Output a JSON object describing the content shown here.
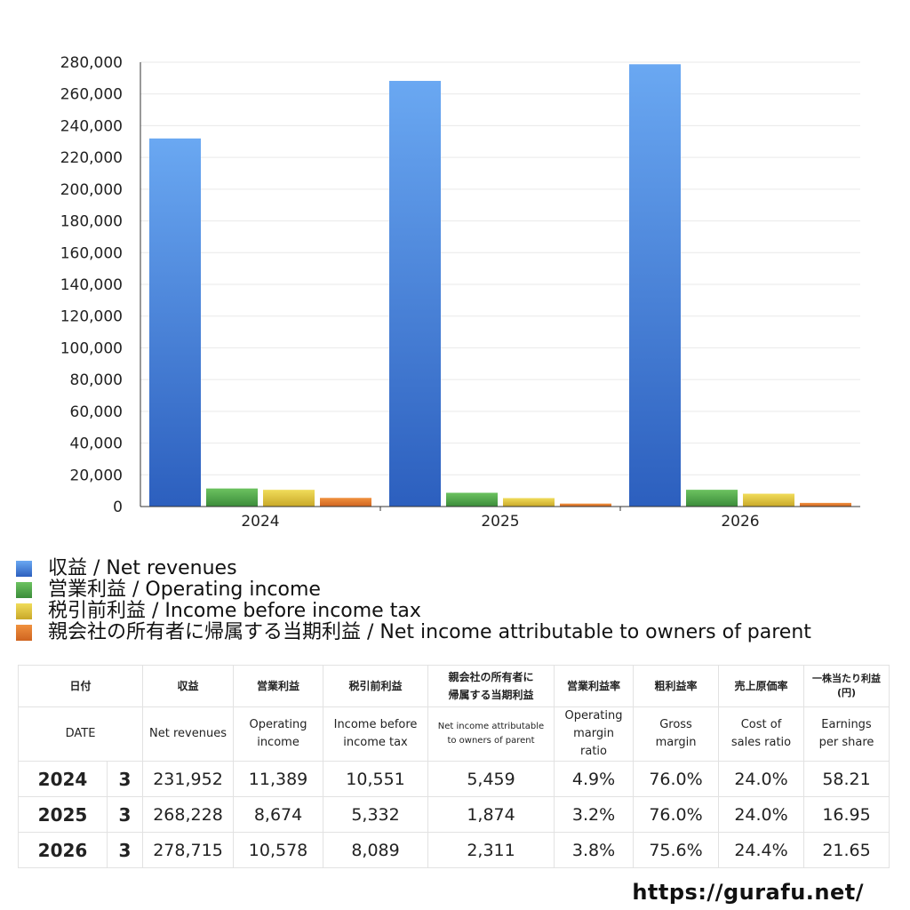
{
  "chart_data": {
    "type": "bar",
    "categories": [
      "2024",
      "2025",
      "2026"
    ],
    "series": [
      {
        "name": "収益 / Net revenues",
        "values": [
          231952,
          268228,
          278715
        ],
        "color": "#3b7fe0"
      },
      {
        "name": "営業利益 / Operating income",
        "values": [
          11389,
          8674,
          10578
        ],
        "color": "#4ea84c"
      },
      {
        "name": "税引前利益 / Income before income tax",
        "values": [
          10551,
          5332,
          8089
        ],
        "color": "#d9c13a"
      },
      {
        "name": "親会社の所有者に帰属する当期利益 / Net income attributable to owners of parent",
        "values": [
          5459,
          1874,
          2311
        ],
        "color": "#e07a30"
      }
    ],
    "ylim": [
      0,
      280000
    ],
    "yticks": [
      "0",
      "20,000",
      "40,000",
      "60,000",
      "80,000",
      "100,000",
      "120,000",
      "140,000",
      "160,000",
      "180,000",
      "200,000",
      "220,000",
      "240,000",
      "260,000",
      "280,000"
    ],
    "grid": true,
    "legend_position": "bottom-left"
  },
  "table": {
    "headers_jp": {
      "date": "日付",
      "net_revenues": "収益",
      "operating_income": "営業利益",
      "income_before_tax": "税引前利益",
      "net_income_line1": "親会社の所有者に",
      "net_income_line2": "帰属する当期利益",
      "operating_margin": "営業利益率",
      "gross_margin": "粗利益率",
      "cost_ratio": "売上原価率",
      "eps_line1": "一株当たり利益",
      "eps_line2": "(円)"
    },
    "headers_en": {
      "date": "DATE",
      "net_revenues": "Net revenues",
      "operating_income_line1": "Operating",
      "operating_income_line2": "income",
      "income_before_tax_line1": "Income before",
      "income_before_tax_line2": "income tax",
      "net_income_line1": "Net income attributable",
      "net_income_line2": "to owners of parent",
      "operating_margin_line1": "Operating",
      "operating_margin_line2": "margin",
      "operating_margin_line3": "ratio",
      "gross_margin_line1": "Gross",
      "gross_margin_line2": "margin",
      "cost_ratio_line1": "Cost of",
      "cost_ratio_line2": "sales ratio",
      "eps_line1": "Earnings",
      "eps_line2": "per share"
    },
    "rows": [
      {
        "year": "2024",
        "month": "3",
        "net_revenues": "231,952",
        "operating_income": "11,389",
        "income_before_tax": "10,551",
        "net_income": "5,459",
        "operating_margin": "4.9%",
        "gross_margin": "76.0%",
        "cost_ratio": "24.0%",
        "eps": "58.21"
      },
      {
        "year": "2025",
        "month": "3",
        "net_revenues": "268,228",
        "operating_income": "8,674",
        "income_before_tax": "5,332",
        "net_income": "1,874",
        "operating_margin": "3.2%",
        "gross_margin": "76.0%",
        "cost_ratio": "24.0%",
        "eps": "16.95"
      },
      {
        "year": "2026",
        "month": "3",
        "net_revenues": "278,715",
        "operating_income": "10,578",
        "income_before_tax": "8,089",
        "net_income": "2,311",
        "operating_margin": "3.8%",
        "gross_margin": "75.6%",
        "cost_ratio": "24.4%",
        "eps": "21.65"
      }
    ]
  },
  "footer": {
    "url": "https://gurafu.net/"
  }
}
